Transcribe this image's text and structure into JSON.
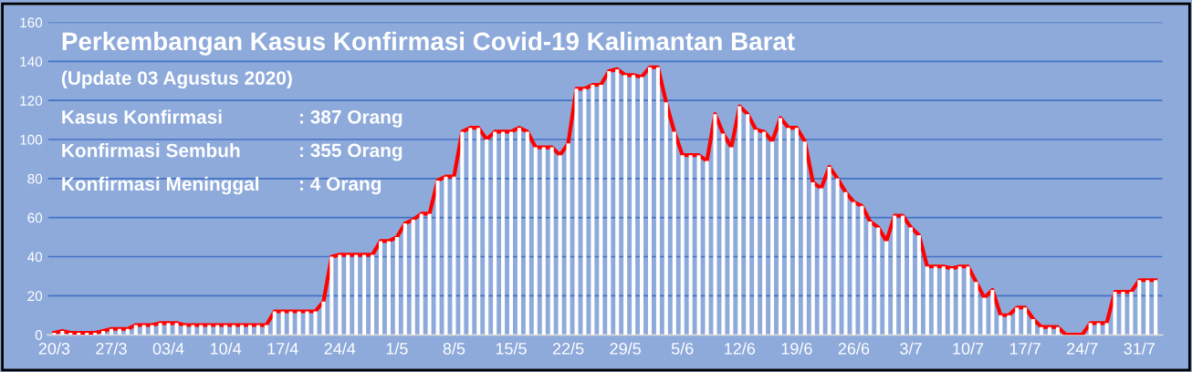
{
  "chart_data": {
    "type": "bar",
    "title": "Perkembangan Kasus Konfirmasi Covid-19 Kalimantan Barat",
    "subtitle": "(Update 03 Agustus 2020)",
    "annotations": [
      "Kasus Konfirmasi : 387 Orang",
      "Konfirmasi Sembuh : 355 Orang",
      "Konfirmasi Meninggal : 4 Orang"
    ],
    "categories": [
      "20/3",
      null,
      null,
      null,
      null,
      null,
      null,
      "27/3",
      null,
      null,
      null,
      null,
      null,
      null,
      "03/4",
      null,
      null,
      null,
      null,
      null,
      null,
      "10/4",
      null,
      null,
      null,
      null,
      null,
      null,
      "17/4",
      null,
      null,
      null,
      null,
      null,
      null,
      "24/4",
      null,
      null,
      null,
      null,
      null,
      null,
      "1/5",
      null,
      null,
      null,
      null,
      null,
      null,
      "8/5",
      null,
      null,
      null,
      null,
      null,
      null,
      "15/5",
      null,
      null,
      null,
      null,
      null,
      null,
      "22/5",
      null,
      null,
      null,
      null,
      null,
      null,
      "29/5",
      null,
      null,
      null,
      null,
      null,
      null,
      "5/6",
      null,
      null,
      null,
      null,
      null,
      null,
      "12/6",
      null,
      null,
      null,
      null,
      null,
      null,
      "19/6",
      null,
      null,
      null,
      null,
      null,
      null,
      "26/6",
      null,
      null,
      null,
      null,
      null,
      null,
      "3/7",
      null,
      null,
      null,
      null,
      null,
      null,
      "10/7",
      null,
      null,
      null,
      null,
      null,
      null,
      "17/7",
      null,
      null,
      null,
      null,
      null,
      null,
      "24/7",
      null,
      null,
      null,
      null,
      null,
      null,
      "31/7",
      null,
      null
    ],
    "series": [
      {
        "color": "#ffffff",
        "values": [
          1,
          2,
          1,
          1,
          1,
          1,
          2,
          3,
          3,
          3,
          5,
          5,
          5,
          6,
          6,
          6,
          5,
          5,
          5,
          5,
          5,
          5,
          5,
          5,
          5,
          5,
          5,
          12,
          12,
          12,
          12,
          12,
          12,
          17,
          40,
          41,
          41,
          41,
          41,
          41,
          48,
          48,
          50,
          57,
          59,
          62,
          62,
          79,
          81,
          81,
          104,
          106,
          106,
          100,
          104,
          104,
          104,
          106,
          104,
          96,
          96,
          96,
          92,
          98,
          126,
          126,
          128,
          128,
          135,
          136,
          133,
          133,
          132,
          137,
          137,
          119,
          104,
          92,
          92,
          92,
          89,
          113,
          103,
          96,
          117,
          113,
          105,
          104,
          99,
          111,
          106,
          106,
          99,
          78,
          75,
          86,
          80,
          73,
          68,
          66,
          58,
          55,
          48,
          61,
          61,
          55,
          51,
          35,
          35,
          35,
          34,
          35,
          35,
          27,
          19,
          23,
          10,
          10,
          14,
          14,
          8,
          4,
          4,
          4,
          0,
          0,
          0,
          6,
          6,
          6,
          22,
          22,
          22,
          28,
          28,
          28
        ]
      },
      {
        "type": "line",
        "color": "#ff0000",
        "values": [
          1,
          2,
          1,
          1,
          1,
          1,
          2,
          3,
          3,
          3,
          5,
          5,
          5,
          6,
          6,
          6,
          5,
          5,
          5,
          5,
          5,
          5,
          5,
          5,
          5,
          5,
          5,
          12,
          12,
          12,
          12,
          12,
          12,
          17,
          40,
          41,
          41,
          41,
          41,
          41,
          48,
          48,
          50,
          57,
          59,
          62,
          62,
          79,
          81,
          81,
          104,
          106,
          106,
          100,
          104,
          104,
          104,
          106,
          104,
          96,
          96,
          96,
          92,
          98,
          126,
          126,
          128,
          128,
          135,
          136,
          133,
          133,
          132,
          137,
          137,
          119,
          104,
          92,
          92,
          92,
          89,
          113,
          103,
          96,
          117,
          113,
          105,
          104,
          99,
          111,
          106,
          106,
          99,
          78,
          75,
          86,
          80,
          73,
          68,
          66,
          58,
          55,
          48,
          61,
          61,
          55,
          51,
          35,
          35,
          35,
          34,
          35,
          35,
          27,
          19,
          23,
          10,
          10,
          14,
          14,
          8,
          4,
          4,
          4,
          0,
          0,
          0,
          6,
          6,
          6,
          22,
          22,
          22,
          28,
          28,
          28
        ]
      }
    ],
    "ylim": [
      0,
      160
    ],
    "yticks": [
      0,
      20,
      40,
      60,
      80,
      100,
      120,
      140,
      160
    ],
    "grid": "y",
    "line_style": "solid",
    "marker": "none"
  }
}
